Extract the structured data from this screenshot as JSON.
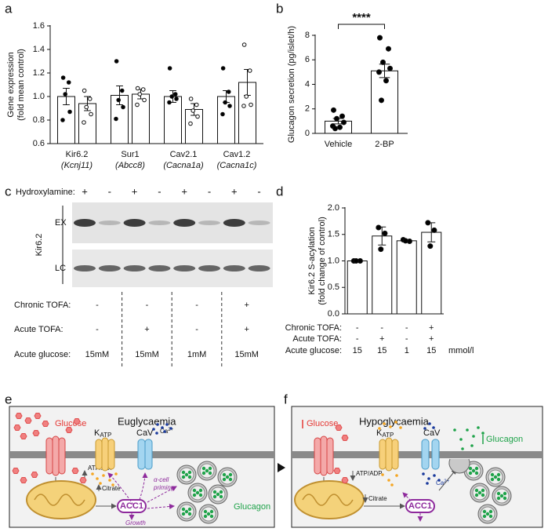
{
  "panel_labels": [
    "a",
    "b",
    "c",
    "d",
    "e",
    "f"
  ],
  "chart_data": [
    {
      "type": "bar",
      "ylabel": [
        "Gene expression",
        "(fold mean control)"
      ],
      "categories": [
        "Kir6.2",
        "Sur1",
        "Cav2.1",
        "Cav1.2"
      ],
      "gene_names": [
        "(Kcnj11)",
        "(Abcc8)",
        "(Cacna1a)",
        "(Cacna1c)"
      ],
      "color": "#ffffff",
      "series": [
        {
          "marker_fill": "#000000",
          "values": [
            1.0,
            1.01,
            1.0,
            1.0
          ],
          "errors": [
            0.07,
            0.08,
            0.05,
            0.05
          ],
          "points": [
            [
              1.16,
              1.12,
              1.02,
              0.87,
              0.8
            ],
            [
              1.3,
              1.05,
              0.97,
              0.91,
              0.81
            ],
            [
              1.24,
              1.02,
              1.0,
              0.98,
              0.95
            ],
            [
              1.24,
              1.04,
              0.95,
              0.92,
              0.85
            ]
          ]
        },
        {
          "marker_fill": "#ffffff",
          "values": [
            0.94,
            1.02,
            0.89,
            1.12
          ],
          "errors": [
            0.06,
            0.04,
            0.05,
            0.11
          ],
          "points": [
            [
              1.05,
              0.98,
              0.91,
              0.85,
              0.78
            ],
            [
              1.07,
              1.06,
              1.02,
              0.97,
              0.93
            ],
            [
              0.98,
              0.93,
              0.88,
              0.83,
              0.77
            ],
            [
              1.44,
              1.22,
              1.0,
              0.93,
              0.92
            ]
          ]
        }
      ],
      "ylim": [
        0.6,
        1.6
      ],
      "yticks": [
        0.6,
        0.8,
        {
          "value": 1,
          "label": "1.0"
        },
        1.2,
        1.4,
        1.6
      ]
    },
    {
      "type": "bar",
      "ylabel": "Glucagon secretion (pg/islet/h)",
      "categories": [
        "Vehicle",
        "2-BP"
      ],
      "color": "#ffffff",
      "marker_fill": "#000000",
      "values": [
        1.0,
        5.1
      ],
      "errors": [
        0.22,
        0.55
      ],
      "points": [
        [
          1.9,
          1.4,
          1.2,
          0.9,
          0.6,
          0.5,
          0.4
        ],
        [
          7.8,
          6.9,
          5.8,
          5.3,
          5.0,
          4.3,
          2.7
        ]
      ],
      "ylim": [
        0,
        8
      ],
      "yticks": [
        0,
        2,
        4,
        6,
        8
      ],
      "annotation": "****"
    },
    {
      "type": "bar",
      "ylabel": [
        "Kir6.2 S-acylation",
        "(fold change of control)"
      ],
      "color": "#ffffff",
      "marker_fill": "#000000",
      "values": [
        1.0,
        1.47,
        1.38,
        1.54
      ],
      "errors": [
        0.0,
        0.17,
        0.02,
        0.18
      ],
      "points": [
        [
          1.0,
          1.0,
          1.0
        ],
        [
          1.63,
          1.52,
          1.22
        ],
        [
          1.4,
          1.37,
          1.38
        ],
        [
          1.72,
          1.58,
          1.28
        ]
      ],
      "ylim": [
        0,
        2
      ],
      "yticks": [
        {
          "value": 0,
          "label": "0.0"
        },
        0.5,
        {
          "value": 1,
          "label": "1.0"
        },
        1.5,
        {
          "value": 2,
          "label": "2.0"
        }
      ],
      "conditions": [
        {
          "label": "Chronic TOFA:",
          "values": [
            "-",
            "-",
            "-",
            "+"
          ]
        },
        {
          "label": "Acute TOFA:",
          "values": [
            "-",
            "+",
            "-",
            "+"
          ]
        },
        {
          "label": "Acute glucose:",
          "values": [
            "15",
            "15",
            "1",
            "15"
          ]
        }
      ],
      "unit": "mmol/l"
    }
  ],
  "blot": {
    "hydroxylamine_label": "Hydroxylamine:",
    "hydroxylamine": [
      "+",
      "-",
      "+",
      "-",
      "+",
      "-",
      "+",
      "-"
    ],
    "antibody": "Kir6.2",
    "lanes": [
      "EX",
      "LC"
    ],
    "conditions": [
      {
        "label": "Chronic TOFA:",
        "values": [
          "-",
          "-",
          "-",
          "+"
        ]
      },
      {
        "label": "Acute TOFA:",
        "values": [
          "-",
          "+",
          "-",
          "+"
        ]
      },
      {
        "label": "Acute glucose:",
        "values": [
          "15mM",
          "15mM",
          "1mM",
          "15mM"
        ]
      }
    ]
  },
  "diagrams": [
    {
      "title": "Euglycaemia",
      "glucose": "Glucose",
      "katp": {
        "main": "K",
        "sub": "ATP"
      },
      "cav": "CaV",
      "ca": {
        "main": "Ca",
        "sup": "2+"
      },
      "atp_adp": "ATP/ADP",
      "citrate": "Citrate",
      "acc1": "ACC1",
      "priming": [
        "α-cell",
        "priming"
      ],
      "growth": "Growth",
      "glucagon": "Glucagon"
    },
    {
      "title": "Hypoglycaemia",
      "glucose": "Glucose",
      "katp": {
        "main": "K",
        "sub": "ATP"
      },
      "cav": "CaV",
      "ca": {
        "main": "Ca",
        "sup": "2+"
      },
      "atp_adp": "ATP/ADP",
      "citrate": "Citrate",
      "acc1": "ACC1",
      "glucagon": "Glucagon"
    }
  ]
}
